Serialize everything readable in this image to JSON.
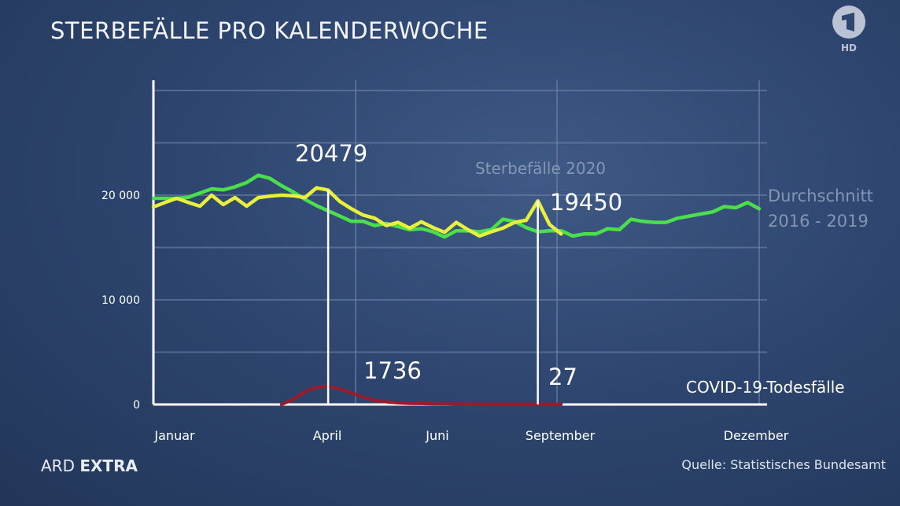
{
  "title": "STERBEFÄLLE PRO KALENDERWOCHE",
  "logo": {
    "text": "1",
    "badge": "HD"
  },
  "footer": {
    "brand_a": "ARD",
    "brand_b": "EXTRA",
    "source": "Quelle: Statistisches Bundesamt"
  },
  "colors": {
    "background": "#2e4670",
    "avg": "#4be04b",
    "y2020": "#e8f03a",
    "covid": "#9a1c2c",
    "grid": "#6f83a6"
  },
  "chart_data": {
    "type": "line",
    "title": "STERBEFÄLLE PRO KALENDERWOCHE",
    "xlabel": "",
    "ylabel": "",
    "x_unit": "Kalenderwoche",
    "xlim": [
      1,
      53
    ],
    "ylim": [
      0,
      30000
    ],
    "grid": true,
    "y_ticks": [
      {
        "value": 0,
        "label": "0"
      },
      {
        "value": 10000,
        "label": "10 000"
      },
      {
        "value": 20000,
        "label": "20 000"
      }
    ],
    "x_tick_labels": [
      "Januar",
      "April",
      "Juni",
      "September",
      "Dezember"
    ],
    "series": [
      {
        "name": "Durchschnitt 2016 - 2019",
        "name_lines": [
          "Durchschnitt",
          "2016 - 2019"
        ],
        "color": "#4be04b",
        "start_week": 1,
        "values": [
          19700,
          19700,
          19700,
          19800,
          20200,
          20600,
          20500,
          20800,
          21200,
          21900,
          21600,
          20900,
          20300,
          19600,
          19000,
          18500,
          18000,
          17500,
          17500,
          17100,
          17300,
          17000,
          16700,
          16800,
          16500,
          16000,
          16600,
          16600,
          16500,
          16700,
          17700,
          17500,
          16900,
          16500,
          16600,
          16600,
          16100,
          16300,
          16300,
          16800,
          16700,
          17700,
          17500,
          17400,
          17400,
          17800,
          18000,
          18200,
          18400,
          18900,
          18800,
          19300,
          18700
        ]
      },
      {
        "name": "Sterbefälle 2020",
        "color": "#e8f03a",
        "start_week": 1,
        "values": [
          18870,
          19300,
          19700,
          19300,
          18950,
          20000,
          19100,
          19770,
          18950,
          19770,
          19900,
          20000,
          19950,
          19770,
          20700,
          20479,
          19400,
          18700,
          18100,
          17800,
          17100,
          17400,
          16850,
          17450,
          16900,
          16450,
          17400,
          16700,
          16100,
          16500,
          16850,
          17400,
          17600,
          19450,
          17200,
          16300
        ]
      },
      {
        "name": "COVID-19-Todesfälle",
        "color": "#9a1c2c",
        "start_week": 12,
        "values": [
          0,
          500,
          1200,
          1650,
          1736,
          1500,
          1100,
          700,
          400,
          250,
          150,
          100,
          80,
          60,
          50,
          40,
          35,
          30,
          30,
          30,
          28,
          28,
          27,
          27,
          27
        ]
      }
    ],
    "annotations": [
      {
        "text": "20479",
        "week": 16,
        "value": 20479,
        "series": "Sterbefälle 2020"
      },
      {
        "text": "19450",
        "week": 34,
        "value": 19450,
        "series": "Sterbefälle 2020"
      },
      {
        "text": "1736",
        "week": 16,
        "value": 1736,
        "series": "COVID-19-Todesfälle"
      },
      {
        "text": "27",
        "week": 34,
        "value": 27,
        "series": "COVID-19-Todesfälle"
      }
    ]
  }
}
